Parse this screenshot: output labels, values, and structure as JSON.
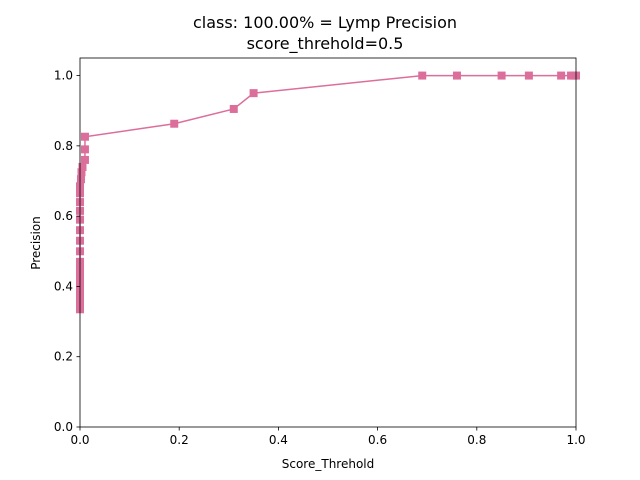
{
  "chart_data": {
    "type": "line",
    "title": "class: 100.00% = Lymp Precision",
    "subtitle": "score_threhold=0.5",
    "xlabel": "Score_Threhold",
    "ylabel": "Precision",
    "xlim": [
      0,
      1
    ],
    "ylim": [
      0,
      1.05
    ],
    "x_ticks": [
      "0.0",
      "0.2",
      "0.4",
      "0.6",
      "0.8",
      "1.0"
    ],
    "y_ticks": [
      "0.0",
      "0.2",
      "0.4",
      "0.6",
      "0.8",
      "1.0"
    ],
    "grid": false,
    "color": "#dc6e9b",
    "marker": "square",
    "series": [
      {
        "x": [
          0.0,
          0.0,
          0.0,
          0.0,
          0.0,
          0.0,
          0.0,
          0.0,
          0.0,
          0.0,
          0.0,
          0.0,
          0.0,
          0.0,
          0.0,
          0.0,
          0.002,
          0.003,
          0.005,
          0.01,
          0.01,
          0.01,
          0.19,
          0.31,
          0.35,
          0.69,
          0.76,
          0.85,
          0.905,
          0.97,
          0.99,
          0.995,
          1.0
        ],
        "y": [
          0.335,
          0.35,
          0.37,
          0.39,
          0.41,
          0.43,
          0.45,
          0.47,
          0.5,
          0.53,
          0.56,
          0.59,
          0.615,
          0.64,
          0.665,
          0.685,
          0.705,
          0.725,
          0.74,
          0.76,
          0.79,
          0.826,
          0.863,
          0.905,
          0.95,
          1.0,
          1.0,
          1.0,
          1.0,
          1.0,
          1.0,
          1.0,
          1.0
        ]
      }
    ]
  }
}
